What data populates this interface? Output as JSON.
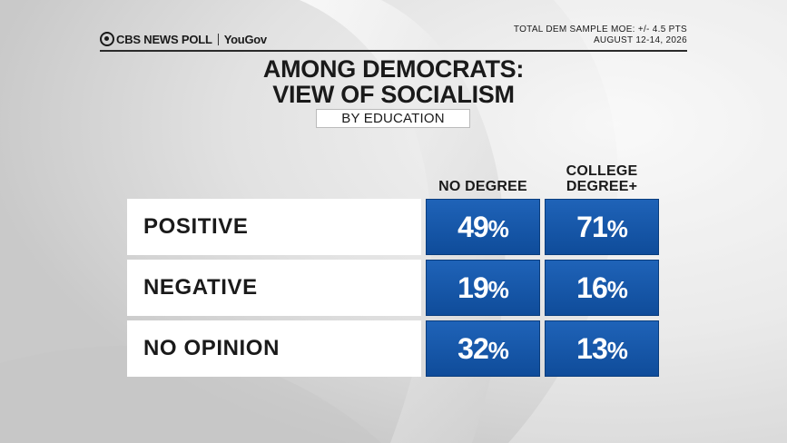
{
  "header": {
    "brand": "CBS NEWS POLL",
    "partner": "YouGov",
    "moe": "TOTAL DEM SAMPLE MOE: +/- 4.5 PTS",
    "dates": "AUGUST 12-14, 2026"
  },
  "colors": {
    "cell": "#1559ad",
    "label_bg": "#ffffff",
    "text": "#1a1a1a"
  },
  "chart_data": {
    "type": "table",
    "title_line1": "AMONG DEMOCRATS:",
    "title_line2": "VIEW OF SOCIALISM",
    "subtitle": "BY EDUCATION",
    "columns": [
      {
        "line1": "",
        "line2": "NO DEGREE"
      },
      {
        "line1": "COLLEGE",
        "line2": "DEGREE+"
      }
    ],
    "rows": [
      {
        "label": "POSITIVE",
        "values": [
          49,
          71
        ]
      },
      {
        "label": "NEGATIVE",
        "values": [
          19,
          16
        ]
      },
      {
        "label": "NO OPINION",
        "values": [
          32,
          13
        ]
      }
    ],
    "unit": "%"
  }
}
